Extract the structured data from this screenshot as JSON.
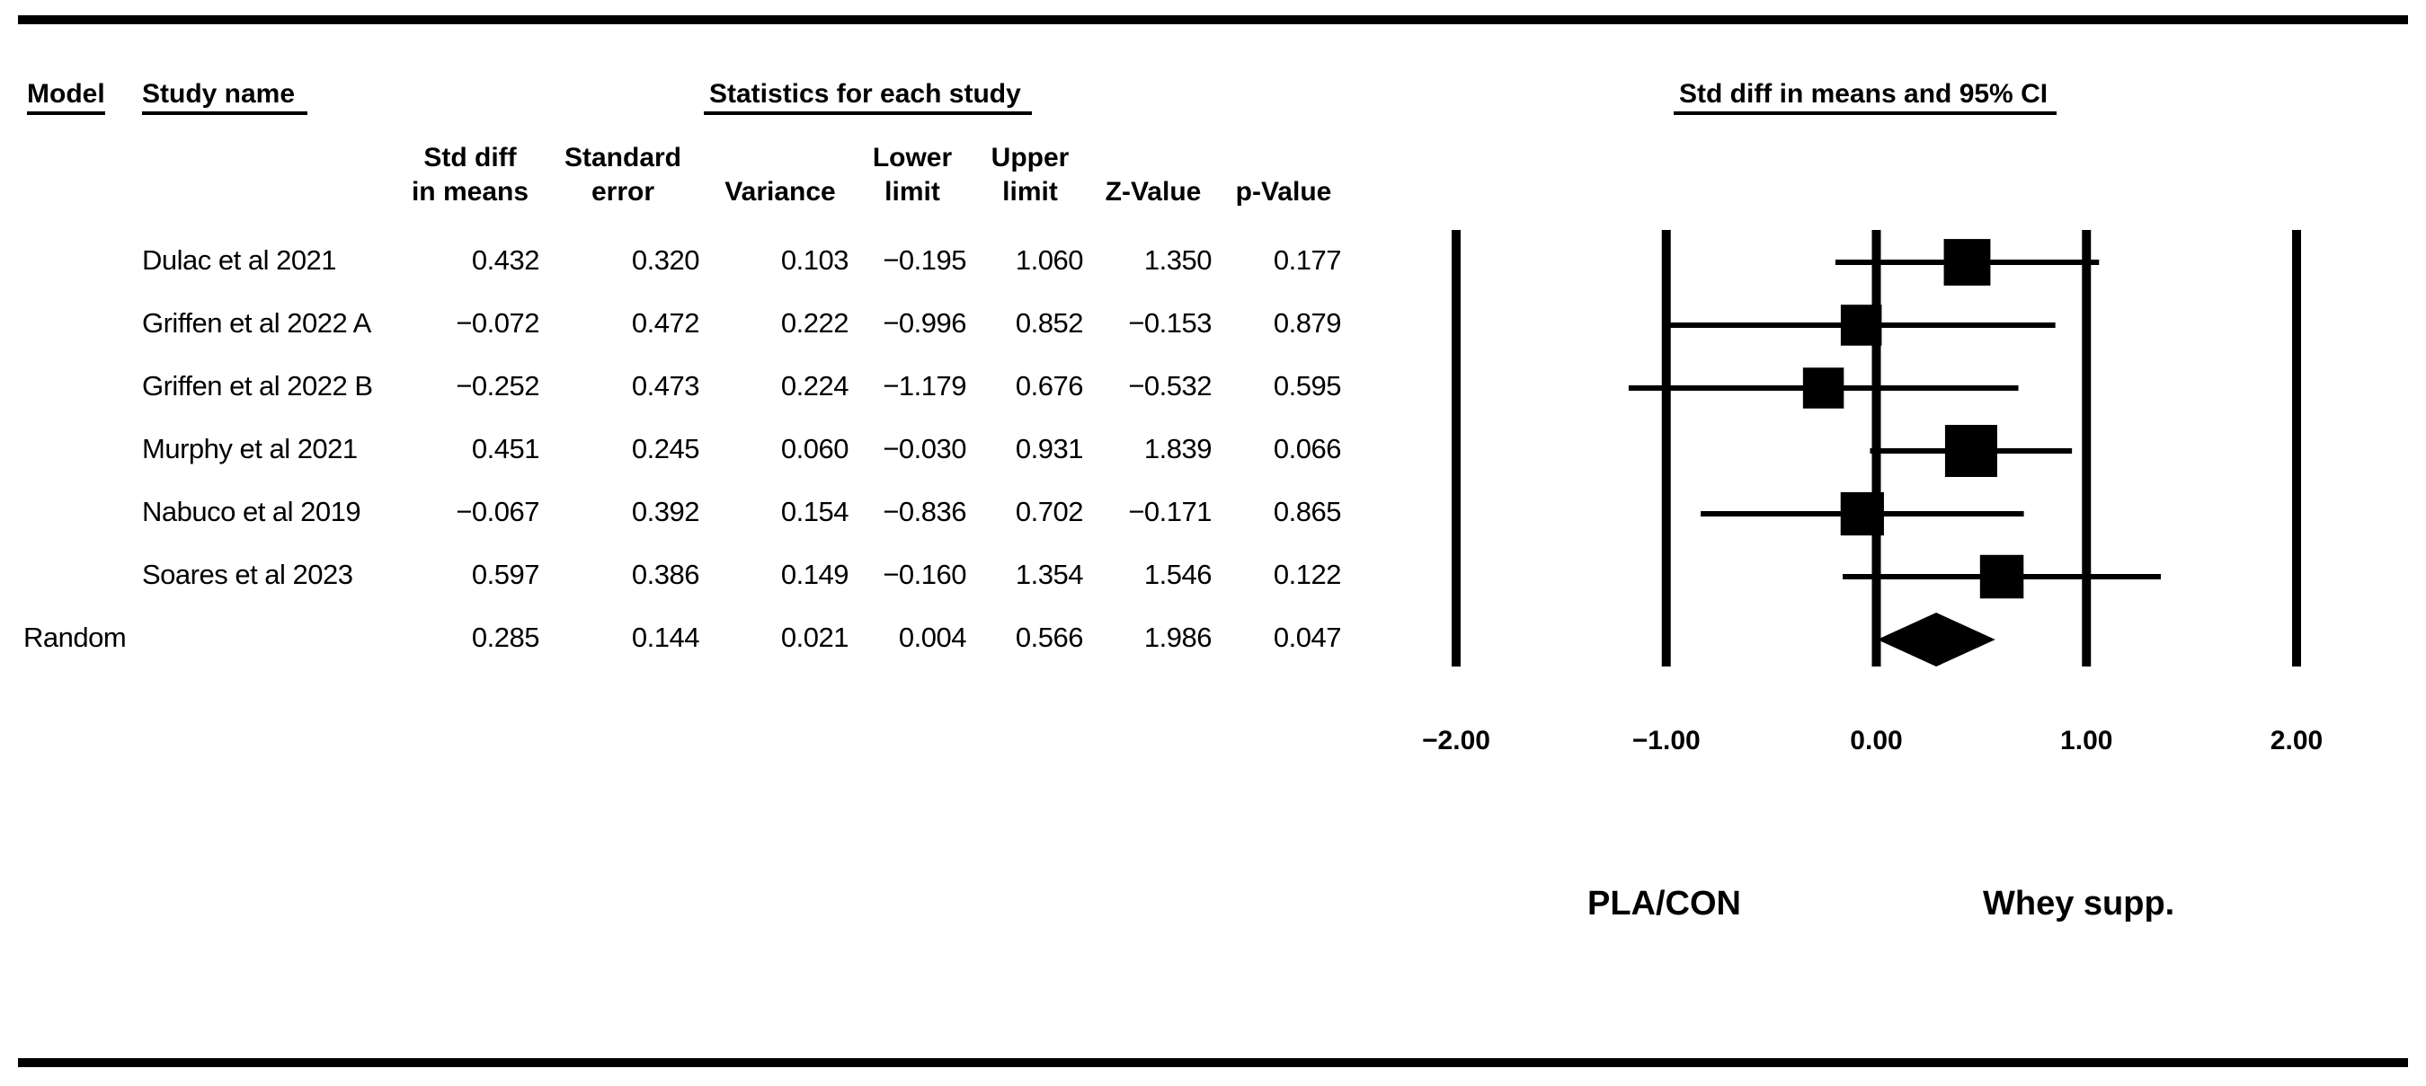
{
  "headers": {
    "model": "Model",
    "study_name": "Study name",
    "statistics": "Statistics for each study",
    "plot_title": "Std diff in means and 95% CI"
  },
  "columns": [
    {
      "key": "smd",
      "line1": "Std diff",
      "line2": "in means"
    },
    {
      "key": "se",
      "line1": "Standard",
      "line2": "error"
    },
    {
      "key": "var",
      "line1": "",
      "line2": "Variance"
    },
    {
      "key": "lower",
      "line1": "Lower",
      "line2": "limit"
    },
    {
      "key": "upper",
      "line1": "Upper",
      "line2": "limit"
    },
    {
      "key": "z",
      "line1": "",
      "line2": "Z-Value"
    },
    {
      "key": "p",
      "line1": "",
      "line2": "p-Value"
    }
  ],
  "rows": [
    {
      "model": "",
      "name": "Dulac et al 2021",
      "smd": "0.432",
      "se": "0.320",
      "var": "0.103",
      "lower": "−0.195",
      "upper": "1.060",
      "z": "1.350",
      "p": "0.177"
    },
    {
      "model": "",
      "name": "Griffen et al 2022 A",
      "smd": "−0.072",
      "se": "0.472",
      "var": "0.222",
      "lower": "−0.996",
      "upper": "0.852",
      "z": "−0.153",
      "p": "0.879"
    },
    {
      "model": "",
      "name": "Griffen et al 2022 B",
      "smd": "−0.252",
      "se": "0.473",
      "var": "0.224",
      "lower": "−1.179",
      "upper": "0.676",
      "z": "−0.532",
      "p": "0.595"
    },
    {
      "model": "",
      "name": "Murphy et al 2021",
      "smd": "0.451",
      "se": "0.245",
      "var": "0.060",
      "lower": "−0.030",
      "upper": "0.931",
      "z": "1.839",
      "p": "0.066"
    },
    {
      "model": "",
      "name": "Nabuco et al 2019",
      "smd": "−0.067",
      "se": "0.392",
      "var": "0.154",
      "lower": "−0.836",
      "upper": "0.702",
      "z": "−0.171",
      "p": "0.865"
    },
    {
      "model": "",
      "name": "Soares et al 2023",
      "smd": "0.597",
      "se": "0.386",
      "var": "0.149",
      "lower": "−0.160",
      "upper": "1.354",
      "z": "1.546",
      "p": "0.122"
    },
    {
      "model": "Random",
      "name": "",
      "smd": "0.285",
      "se": "0.144",
      "var": "0.021",
      "lower": "0.004",
      "upper": "0.566",
      "z": "1.986",
      "p": "0.047"
    }
  ],
  "chart_data": {
    "type": "forest",
    "title": "Std diff in means and 95% CI",
    "xlim": [
      -2,
      2
    ],
    "ticks": [
      -2,
      -1,
      0,
      1,
      2
    ],
    "tick_labels": [
      "−2.00",
      "−1.00",
      "0.00",
      "1.00",
      "2.00"
    ],
    "reference_lines": [
      -2,
      -1,
      0,
      1,
      2
    ],
    "studies": [
      {
        "name": "Dulac et al 2021",
        "estimate": 0.432,
        "lower": -0.195,
        "upper": 1.06,
        "weight": 0.103
      },
      {
        "name": "Griffen et al 2022 A",
        "estimate": -0.072,
        "lower": -0.996,
        "upper": 0.852,
        "weight": 0.222
      },
      {
        "name": "Griffen et al 2022 B",
        "estimate": -0.252,
        "lower": -1.179,
        "upper": 0.676,
        "weight": 0.224
      },
      {
        "name": "Murphy et al 2021",
        "estimate": 0.451,
        "lower": -0.03,
        "upper": 0.931,
        "weight": 0.06
      },
      {
        "name": "Nabuco et al 2019",
        "estimate": -0.067,
        "lower": -0.836,
        "upper": 0.702,
        "weight": 0.154
      },
      {
        "name": "Soares et al 2023",
        "estimate": 0.597,
        "lower": -0.16,
        "upper": 1.354,
        "weight": 0.149
      }
    ],
    "summary": {
      "name": "Random",
      "estimate": 0.285,
      "lower": 0.004,
      "upper": 0.566
    },
    "left_label": "PLA/CON",
    "right_label": "Whey supp."
  }
}
